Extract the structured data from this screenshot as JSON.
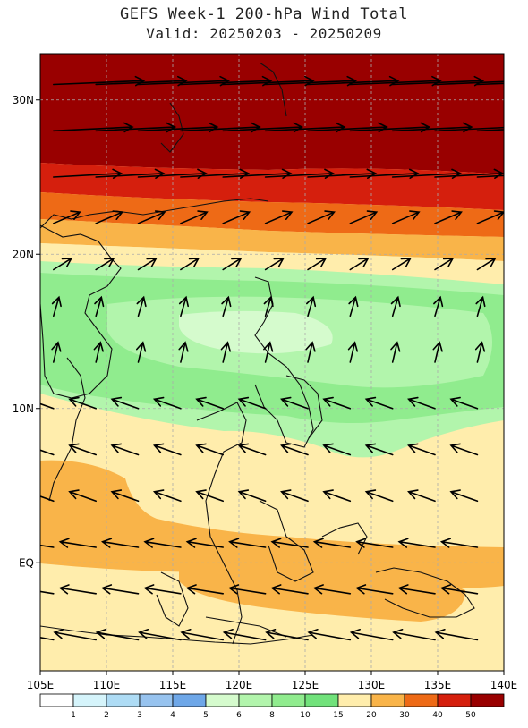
{
  "header": {
    "title": "GEFS Week-1 200-hPa Wind Total",
    "subtitle": "Valid: 20250203 - 20250209"
  },
  "map": {
    "lon_range": [
      105,
      140
    ],
    "lat_range": [
      -7,
      33
    ],
    "lat_ticks": [
      {
        "value": 30,
        "label": "30N"
      },
      {
        "value": 20,
        "label": "20N"
      },
      {
        "value": 10,
        "label": "10N"
      },
      {
        "value": 0,
        "label": "EQ"
      }
    ],
    "lon_ticks": [
      {
        "value": 105,
        "label": "105E"
      },
      {
        "value": 110,
        "label": "110E"
      },
      {
        "value": 115,
        "label": "115E"
      },
      {
        "value": 120,
        "label": "120E"
      },
      {
        "value": 125,
        "label": "125E"
      },
      {
        "value": 130,
        "label": "130E"
      },
      {
        "value": 135,
        "label": "135E"
      },
      {
        "value": 140,
        "label": "140E"
      }
    ]
  },
  "colorbar": {
    "labels": [
      "1",
      "2",
      "3",
      "4",
      "5",
      "6",
      "8",
      "10",
      "15",
      "20",
      "30",
      "40",
      "50"
    ],
    "colors": [
      "#ffffff",
      "#d5f4fb",
      "#aedcf5",
      "#97c3ef",
      "#6ea7e8",
      "#d5fbcd",
      "#b2f5ac",
      "#90ec8e",
      "#71e27b",
      "#ffedac",
      "#f9b449",
      "#ee6a16",
      "#d51f0d",
      "#990000"
    ]
  }
}
